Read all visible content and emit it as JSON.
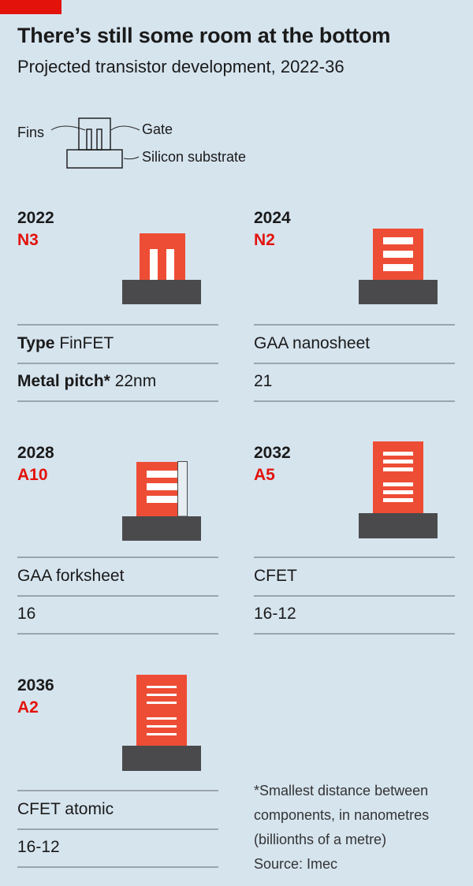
{
  "header": {
    "title": "There’s still some room at the bottom",
    "subtitle": "Projected transistor development, 2022-36"
  },
  "legend": {
    "fins": "Fins",
    "gate": "Gate",
    "substrate": "Silicon substrate"
  },
  "row_labels": {
    "type": "Type",
    "metal_pitch": "Metal pitch*"
  },
  "panels": [
    {
      "year": "2022",
      "node": "N3",
      "type": "FinFET",
      "pitch": "22nm"
    },
    {
      "year": "2024",
      "node": "N2",
      "type": "GAA nanosheet",
      "pitch": "21"
    },
    {
      "year": "2028",
      "node": "A10",
      "type": "GAA forksheet",
      "pitch": "16"
    },
    {
      "year": "2032",
      "node": "A5",
      "type": "CFET",
      "pitch": "16-12"
    },
    {
      "year": "2036",
      "node": "A2",
      "type": "CFET atomic",
      "pitch": "16-12"
    }
  ],
  "footnote": {
    "line1": "*Smallest distance between",
    "line2": "components, in nanometres",
    "line3": "(billionths of a metre)",
    "source": "Source: Imec"
  },
  "colors": {
    "accent": "#e3120b",
    "gate": "#ee4d35",
    "substrate": "#4a4a4c",
    "background": "#d6e4ee"
  }
}
